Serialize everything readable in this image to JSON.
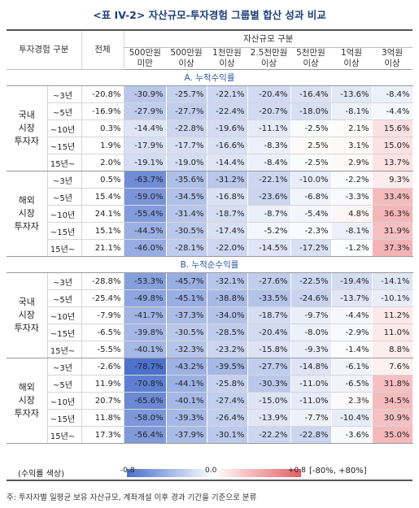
{
  "title": "<표 IV-2> 자산규모-투자경험 그룹별 합산 성과 비교",
  "header": {
    "row_label": "투자경험 구분",
    "total": "전체",
    "group": "자산규모 구분",
    "columns": [
      "500만원\n미만",
      "500만원\n이상",
      "1천만원\n이상",
      "2.5천만원\n이상",
      "5천만원\n이상",
      "1억원\n이상",
      "3억원\n이상"
    ]
  },
  "sections": [
    {
      "title": "A. 누적수익률",
      "groups": [
        {
          "name": "국내\n시장\n투자자",
          "rows": [
            {
              "label": "~3년",
              "values": [
                "-20.8%",
                "-30.9%",
                "-25.7%",
                "-22.1%",
                "-20.4%",
                "-16.4%",
                "-13.6%",
                "-8.4%"
              ]
            },
            {
              "label": "~5년",
              "values": [
                "-16.9%",
                "-27.9%",
                "-27.7%",
                "-22.4%",
                "-20.7%",
                "-18.0%",
                "-8.1%",
                "-4.4%"
              ]
            },
            {
              "label": "~10년",
              "values": [
                "0.3%",
                "-14.4%",
                "-22.8%",
                "-19.6%",
                "-11.1%",
                "-2.5%",
                "2.1%",
                "15.6%"
              ]
            },
            {
              "label": "~15년",
              "values": [
                "1.9%",
                "-17.9%",
                "-17.7%",
                "-16.6%",
                "-8.3%",
                "2.5%",
                "3.1%",
                "15.0%"
              ]
            },
            {
              "label": "15년~",
              "values": [
                "2.0%",
                "-19.1%",
                "-19.0%",
                "-14.4%",
                "-8.4%",
                "-2.5%",
                "2.9%",
                "13.7%"
              ]
            }
          ]
        },
        {
          "name": "해외\n시장\n투자자",
          "rows": [
            {
              "label": "~3년",
              "values": [
                "0.5%",
                "-63.7%",
                "-35.6%",
                "-31.2%",
                "-22.1%",
                "-10.0%",
                "-2.2%",
                "9.3%"
              ]
            },
            {
              "label": "~5년",
              "values": [
                "15.4%",
                "-59.0%",
                "-34.5%",
                "-16.8%",
                "-23.6%",
                "-6.8%",
                "-3.3%",
                "33.4%"
              ]
            },
            {
              "label": "~10년",
              "values": [
                "24.1%",
                "-55.4%",
                "-31.4%",
                "-18.7%",
                "-8.7%",
                "-5.4%",
                "4.8%",
                "36.3%"
              ]
            },
            {
              "label": "~15년",
              "values": [
                "15.1%",
                "-44.5%",
                "-30.5%",
                "-17.4%",
                "-5.2%",
                "-2.3%",
                "-8.1%",
                "31.9%"
              ]
            },
            {
              "label": "15년~",
              "values": [
                "21.1%",
                "-46.0%",
                "-28.1%",
                "-22.0%",
                "-14.5%",
                "-17.2%",
                "-1.2%",
                "37.3%"
              ]
            }
          ]
        }
      ]
    },
    {
      "title": "B. 누적순수익률",
      "groups": [
        {
          "name": "국내\n시장\n투자자",
          "rows": [
            {
              "label": "~3년",
              "values": [
                "-28.8%",
                "-53.3%",
                "-45.7%",
                "-32.1%",
                "-27.6%",
                "-22.5%",
                "-19.4%",
                "-14.1%"
              ]
            },
            {
              "label": "~5년",
              "values": [
                "-25.4%",
                "-49.8%",
                "-45.1%",
                "-38.8%",
                "-33.5%",
                "-24.6%",
                "-13.7%",
                "-10.1%"
              ]
            },
            {
              "label": "~10년",
              "values": [
                "-7.9%",
                "-41.7%",
                "-37.3%",
                "-34.0%",
                "-18.7%",
                "-9.7%",
                "-4.4%",
                "11.2%"
              ]
            },
            {
              "label": "~15년",
              "values": [
                "-6.5%",
                "-39.8%",
                "-30.5%",
                "-28.5%",
                "-20.4%",
                "-8.0%",
                "-2.9%",
                "11.0%"
              ]
            },
            {
              "label": "15년~",
              "values": [
                "-5.5%",
                "-40.1%",
                "-32.3%",
                "-23.2%",
                "-15.8%",
                "-9.3%",
                "-1.4%",
                "8.8%"
              ]
            }
          ]
        },
        {
          "name": "해외\n시장\n투자자",
          "rows": [
            {
              "label": "~3년",
              "values": [
                "-2.6%",
                "-78.7%",
                "-43.2%",
                "-39.5%",
                "-27.7%",
                "-14.8%",
                "-6.1%",
                "7.6%"
              ]
            },
            {
              "label": "~5년",
              "values": [
                "11.9%",
                "-70.8%",
                "-44.1%",
                "-25.8%",
                "-30.3%",
                "-11.0%",
                "-6.5%",
                "31.8%"
              ]
            },
            {
              "label": "~10년",
              "values": [
                "20.7%",
                "-65.6%",
                "-40.1%",
                "-27.4%",
                "-15.0%",
                "-11.0%",
                "2.3%",
                "34.5%"
              ]
            },
            {
              "label": "~15년",
              "values": [
                "11.8%",
                "-58.0%",
                "-39.3%",
                "-26.4%",
                "-13.9%",
                "-7.7%",
                "-10.4%",
                "30.9%"
              ]
            },
            {
              "label": "15년~",
              "values": [
                "17.3%",
                "-56.4%",
                "-37.9%",
                "-30.1%",
                "-22.2%",
                "-22.8%",
                "-3.6%",
                "35.0%"
              ]
            }
          ]
        }
      ]
    }
  ],
  "legend": {
    "label": "(수익률 색상)",
    "min": "-0.8",
    "mid": "0.0",
    "max": "+0.8",
    "range": "[-80%, +80%]",
    "colors": {
      "negative": "#4a6fcc",
      "zero": "#ffffff",
      "positive": "#e85e63"
    }
  },
  "note": "주: 투자자별 일평균 보유 자산규모, 계좌개설 이후 경과 기간을 기준으로 분류"
}
